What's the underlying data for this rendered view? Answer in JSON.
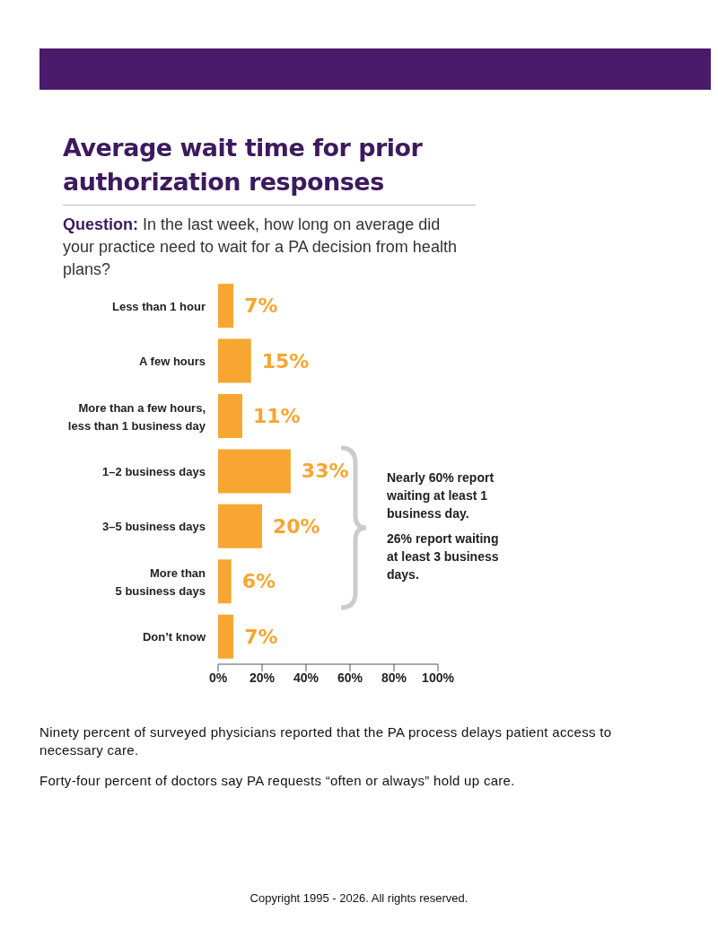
{
  "chart_data": {
    "type": "bar",
    "orientation": "horizontal",
    "title": "Average wait time for prior authorization responses",
    "subtitle": "Question: In the last week, how long on average did your practice need to wait for a PA decision from health plans?",
    "categories": [
      "Less than 1 hour",
      "A few hours",
      "More than a few hours,\nless than 1 business day",
      "1–2 business days",
      "3–5 business days",
      "More than\n5 business days",
      "Don’t know"
    ],
    "values": [
      7,
      15,
      11,
      33,
      20,
      6,
      7
    ],
    "color": "#f7a632",
    "value_labels": [
      "7%",
      "15%",
      "11%",
      "33%",
      "20%",
      "6%",
      "7%"
    ],
    "xlim": [
      0,
      100
    ],
    "xticks": [
      {
        "value": 0,
        "label": "0%"
      },
      {
        "value": 20,
        "label": "20%"
      },
      {
        "value": 40,
        "label": "40%"
      },
      {
        "value": 60,
        "label": "60%"
      },
      {
        "value": 80,
        "label": "80%"
      },
      {
        "value": 100,
        "label": "100%"
      }
    ],
    "grid": false,
    "legend": false,
    "annotations": [
      "Nearly 60% report waiting at least 1 business day.",
      "26% report waiting at least 3 business days.",
      "Ninety percent of surveyed physicians reported that the PA process delays patient access to necessary care.",
      "Forty-four percent of doctors say PA requests “often or always” hold up care.",
      "Copyright 1995 - 2026. All rights reserved."
    ]
  }
}
